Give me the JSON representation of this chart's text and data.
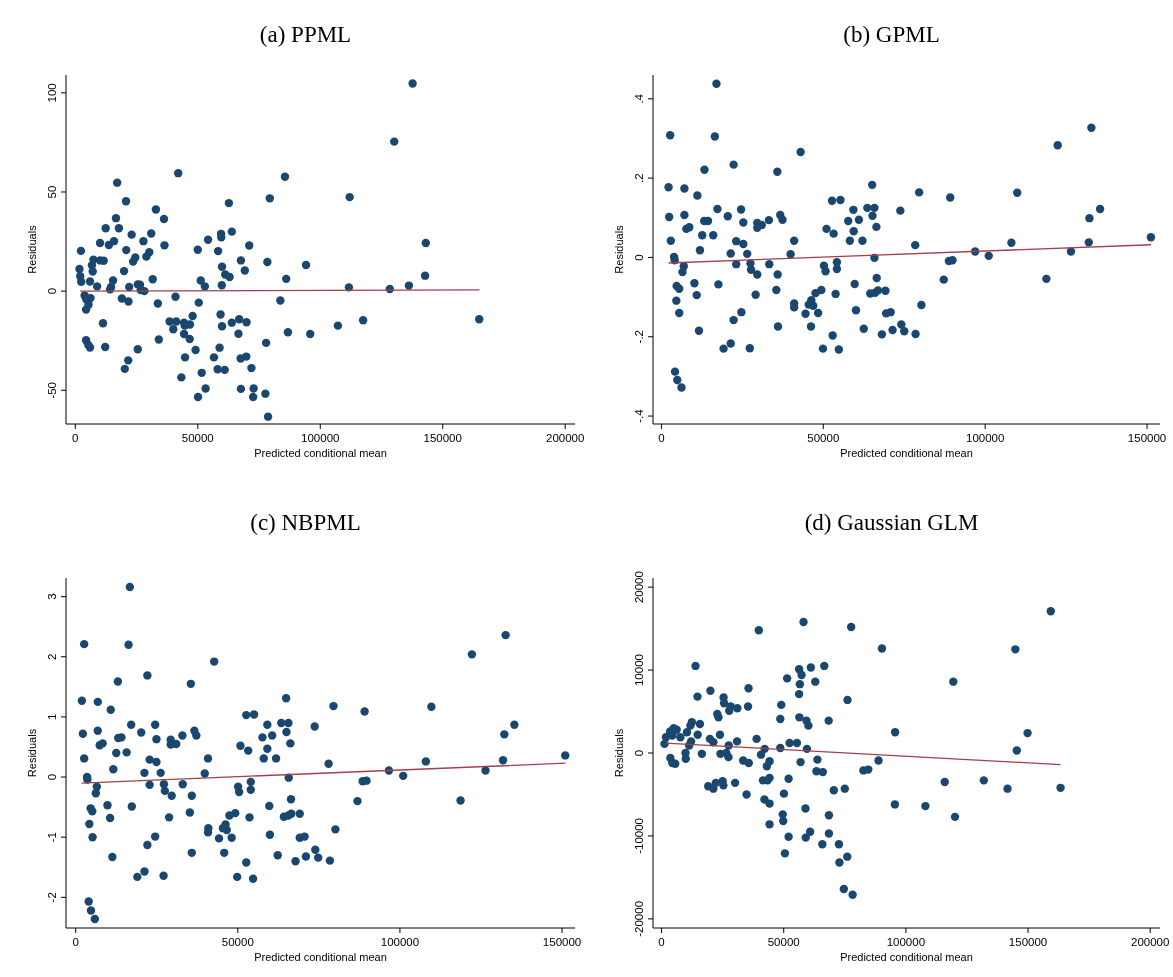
{
  "chart_data": [
    {
      "type": "scatter",
      "title": "(a) PPML",
      "xlabel": "Predicted conditional mean",
      "ylabel": "Residuals",
      "xlim": [
        -3800,
        204000
      ],
      "ylim": [
        -67,
        109
      ],
      "xticks": [
        0,
        50000,
        100000,
        150000,
        200000
      ],
      "yticks": [
        -50,
        0,
        50,
        100
      ],
      "marker": "circle",
      "series": [
        {
          "color": "#1a476f",
          "x": [
            137700,
            130200,
            42000,
            17100,
            85600,
            20700,
            112000,
            79400,
            62700,
            32900,
            36200,
            16600,
            12400,
            17800,
            63900,
            59500,
            59600,
            23000,
            31000,
            10100,
            13700,
            15800,
            27800,
            36400,
            54200,
            71000,
            143100,
            2300,
            20800,
            30200,
            50000,
            58300,
            7400,
            10100,
            11600,
            23600,
            24500,
            29000,
            67600,
            78400,
            94200,
            6800,
            59900,
            1700,
            7100,
            19900,
            69200,
            61200,
            63000,
            142800,
            2000,
            2400,
            6000,
            15400,
            31600,
            51200,
            86100,
            52900,
            59800,
            8900,
            14600,
            22000,
            25500,
            26400,
            26700,
            28200,
            14200,
            111700,
            128400,
            136200,
            3800,
            4500,
            6200,
            5400,
            4400,
            19000,
            21700,
            33700,
            40900,
            50400,
            83700,
            11300,
            38500,
            41200,
            40000,
            44400,
            44700,
            46800,
            47900,
            59300,
            59900,
            63900,
            66900,
            69900,
            66600,
            44400,
            46700,
            86800,
            95900,
            107200,
            117500,
            164900,
            4400,
            5300,
            6000,
            12200,
            25500,
            34100,
            49100,
            58900,
            77900,
            44800,
            56600,
            67500,
            69800,
            21600,
            20200,
            58100,
            61000,
            71900,
            51600,
            43300,
            53200,
            67600,
            72800,
            50100,
            72600,
            77600,
            78700
          ],
          "values": [
            104.7,
            75.4,
            59.5,
            54.7,
            57.7,
            45.3,
            47.4,
            46.8,
            44.4,
            41.2,
            36.4,
            36.8,
            31.7,
            31.7,
            30.0,
            28.9,
            27.2,
            28.5,
            29.1,
            24.3,
            23.3,
            25.2,
            25.2,
            23.1,
            25.9,
            23.0,
            24.3,
            20.3,
            20.7,
            19.6,
            20.9,
            20.2,
            15.9,
            15.5,
            15.3,
            14.9,
            17.0,
            17.4,
            15.5,
            14.7,
            13.2,
            13.1,
            12.3,
            11.2,
            9.9,
            10.1,
            10.4,
            8.4,
            7.1,
            7.8,
            7.5,
            4.7,
            4.9,
            5.4,
            6.0,
            5.4,
            6.2,
            2.4,
            3.0,
            2.4,
            2.1,
            2.1,
            3.4,
            3.2,
            0.6,
            0,
            0.9,
            1.9,
            1.1,
            2.8,
            -2.2,
            -4.1,
            -3.5,
            -6.9,
            -9.3,
            -3.7,
            -5.2,
            -6.2,
            -2.8,
            -5.8,
            -4.7,
            -16.2,
            -15.3,
            -15.3,
            -19.2,
            -15.9,
            -17.4,
            -16.8,
            -12.5,
            -11.8,
            -17.7,
            -15.9,
            -14.2,
            -15.7,
            -21.5,
            -21.6,
            -24.1,
            -20.7,
            -21.6,
            -17.4,
            -14.7,
            -14.2,
            -24.8,
            -27.1,
            -28.4,
            -28.2,
            -29.3,
            -24.4,
            -29.7,
            -28.5,
            -26.1,
            -33.4,
            -33.4,
            -34.0,
            -33.0,
            -34.9,
            -39.2,
            -39.4,
            -39.7,
            -38.8,
            -41.2,
            -43.5,
            -49.1,
            -49.3,
            -49.1,
            -53.4,
            -53.4,
            -51.7,
            -63.3
          ]
        },
        {
          "type": "line",
          "marker": "none",
          "color": "#a0404a",
          "x": [
            2000,
            165000
          ],
          "values": [
            0,
            0.6
          ]
        }
      ]
    },
    {
      "type": "scatter",
      "title": "(b) GPML",
      "xlabel": "Predicted conditional mean",
      "ylabel": "Residuals",
      "xlim": [
        -2600,
        154000
      ],
      "ylim": [
        -0.42,
        0.46
      ],
      "xticks": [
        0,
        50000,
        100000,
        150000
      ],
      "yticks": [
        {
          "value": -0.4,
          "label": "-.4"
        },
        {
          "value": -0.2,
          "label": "-.2"
        },
        0,
        {
          "value": 0.2,
          "label": ".2"
        },
        {
          "value": 0.4,
          "label": ".4"
        }
      ],
      "marker": "circle",
      "series": [
        {
          "color": "#1a476f",
          "x": [
            17000,
            2700,
            16500,
            132800,
            43000,
            122400,
            22300,
            13300,
            35800,
            2200,
            7100,
            65100,
            11100,
            79600,
            89200,
            109900,
            52700,
            55300,
            17300,
            24600,
            59300,
            63600,
            65800,
            73800,
            135500,
            2400,
            7100,
            20500,
            36700,
            65200,
            132200,
            13200,
            14400,
            25300,
            29600,
            33200,
            31000,
            37400,
            57700,
            61000,
            7700,
            8600,
            29600,
            51000,
            53200,
            59400,
            66400,
            12600,
            16000,
            2900,
            23100,
            25300,
            41000,
            58200,
            62100,
            78400,
            108100,
            132000,
            151200,
            11900,
            21400,
            26500,
            39900,
            96900,
            101100,
            126500,
            3900,
            4100,
            65800,
            88800,
            89900,
            6900,
            23100,
            27500,
            27700,
            33300,
            50200,
            50700,
            54200,
            54200,
            6500,
            29600,
            35900,
            66500,
            87200,
            118900,
            10200,
            17600,
            4700,
            5500,
            59700,
            35500,
            47600,
            49400,
            53800,
            64500,
            66000,
            66900,
            69200,
            10900,
            29100,
            4600,
            46300,
            41000,
            41000,
            45500,
            46900,
            80300,
            60100,
            5500,
            24700,
            44500,
            48400,
            69400,
            70800,
            22300,
            36000,
            46200,
            74100,
            11600,
            62500,
            71400,
            75000,
            52900,
            68100,
            78500,
            21400,
            19200,
            27300,
            49900,
            54800,
            4200,
            4900,
            6200
          ],
          "values": [
            0.438,
            0.308,
            0.305,
            0.327,
            0.266,
            0.283,
            0.234,
            0.221,
            0.216,
            0.177,
            0.174,
            0.183,
            0.156,
            0.164,
            0.151,
            0.163,
            0.143,
            0.145,
            0.122,
            0.121,
            0.12,
            0.125,
            0.125,
            0.118,
            0.122,
            0.102,
            0.107,
            0.104,
            0.107,
            0.105,
            0.099,
            0.092,
            0.092,
            0.088,
            0.087,
            0.094,
            0.082,
            0.095,
            0.092,
            0.095,
            0.072,
            0.076,
            0.075,
            0.072,
            0.06,
            0.066,
            0.077,
            0.056,
            0.056,
            0.042,
            0.041,
            0.034,
            0.042,
            0.042,
            0.042,
            0.031,
            0.037,
            0.038,
            0.051,
            0.018,
            0.01,
            0.009,
            0.008,
            0.015,
            0.004,
            0.015,
            0.001,
            -0.007,
            -0.001,
            -0.009,
            -0.007,
            -0.022,
            -0.017,
            -0.015,
            -0.031,
            -0.017,
            -0.021,
            -0.035,
            -0.012,
            -0.029,
            -0.037,
            -0.043,
            -0.043,
            -0.052,
            -0.056,
            -0.054,
            -0.065,
            -0.068,
            -0.072,
            -0.079,
            -0.067,
            -0.082,
            -0.09,
            -0.082,
            -0.092,
            -0.091,
            -0.089,
            -0.083,
            -0.084,
            -0.095,
            -0.094,
            -0.109,
            -0.108,
            -0.116,
            -0.126,
            -0.119,
            -0.122,
            -0.12,
            -0.133,
            -0.14,
            -0.138,
            -0.142,
            -0.14,
            -0.141,
            -0.138,
            -0.158,
            -0.174,
            -0.174,
            -0.169,
            -0.185,
            -0.18,
            -0.183,
            -0.186,
            -0.197,
            -0.194,
            -0.193,
            -0.217,
            -0.23,
            -0.229,
            -0.23,
            -0.232,
            -0.288,
            -0.309,
            -0.328
          ]
        },
        {
          "type": "line",
          "marker": "none",
          "color": "#a0404a",
          "x": [
            2200,
            151200
          ],
          "values": [
            -0.014,
            0.032
          ]
        }
      ]
    },
    {
      "type": "scatter",
      "title": "(c) NBPML",
      "xlabel": "Predicted conditional mean",
      "ylabel": "Residuals",
      "xlim": [
        -3000,
        154000
      ],
      "ylim": [
        -2.51,
        3.31
      ],
      "xticks": [
        0,
        50000,
        100000,
        150000
      ],
      "yticks": [
        -2,
        -1,
        0,
        1,
        2,
        3
      ],
      "marker": "circle",
      "series": [
        {
          "color": "#1a476f",
          "x": [
            16700,
            2600,
            16300,
            132600,
            42700,
            122200,
            22100,
            13000,
            35500,
            1900,
            6800,
            64900,
            10800,
            79500,
            89100,
            109700,
            52600,
            55000,
            17100,
            24500,
            59100,
            63400,
            65600,
            73700,
            135300,
            2200,
            6800,
            20200,
            36600,
            65000,
            132200,
            13100,
            14100,
            24900,
            29300,
            32900,
            31000,
            37200,
            57600,
            60600,
            7400,
            8300,
            29300,
            50800,
            53200,
            59100,
            66200,
            12500,
            15700,
            2600,
            22800,
            24900,
            40800,
            58000,
            61800,
            78000,
            108000,
            131800,
            151000,
            11600,
            21200,
            26200,
            39800,
            96600,
            101000,
            126400,
            3500,
            3600,
            65700,
            88500,
            89700,
            6500,
            22800,
            27200,
            27500,
            33000,
            50100,
            50400,
            54000,
            54000,
            6200,
            29600,
            35800,
            66400,
            86900,
            118700,
            9800,
            17300,
            4600,
            5100,
            59700,
            35200,
            47400,
            49200,
            53600,
            64200,
            65600,
            66500,
            69100,
            10600,
            28800,
            4200,
            45400,
            40900,
            40800,
            46200,
            46600,
            80100,
            59900,
            5200,
            24500,
            44200,
            48100,
            69100,
            70600,
            22100,
            35800,
            45800,
            11300,
            62300,
            71000,
            73900,
            74800,
            52600,
            67800,
            78400,
            21200,
            19000,
            27100,
            49800,
            54700,
            4000,
            4700,
            5900
          ],
          "values": [
            3.16,
            2.21,
            2.2,
            2.36,
            1.92,
            2.04,
            1.69,
            1.59,
            1.55,
            1.27,
            1.25,
            1.31,
            1.12,
            1.18,
            1.09,
            1.17,
            1.03,
            1.04,
            0.87,
            0.87,
            0.87,
            0.9,
            0.9,
            0.84,
            0.87,
            0.72,
            0.77,
            0.74,
            0.77,
            0.75,
            0.71,
            0.65,
            0.66,
            0.63,
            0.62,
            0.69,
            0.55,
            0.69,
            0.66,
            0.69,
            0.53,
            0.56,
            0.54,
            0.52,
            0.44,
            0.47,
            0.56,
            0.4,
            0.41,
            0.31,
            0.29,
            0.25,
            0.31,
            0.31,
            0.31,
            0.22,
            0.26,
            0.28,
            0.36,
            0.13,
            0.07,
            0.07,
            0.06,
            0.11,
            0.02,
            0.11,
            0,
            -0.04,
            -0.01,
            -0.07,
            -0.06,
            -0.16,
            -0.13,
            -0.12,
            -0.23,
            -0.12,
            -0.16,
            -0.25,
            -0.08,
            -0.21,
            -0.27,
            -0.31,
            -0.31,
            -0.37,
            -0.4,
            -0.39,
            -0.47,
            -0.49,
            -0.52,
            -0.57,
            -0.48,
            -0.59,
            -0.64,
            -0.6,
            -0.67,
            -0.66,
            -0.64,
            -0.61,
            -0.61,
            -0.68,
            -0.67,
            -0.78,
            -0.85,
            -0.85,
            -0.92,
            -0.79,
            -0.88,
            -0.87,
            -0.96,
            -1.0,
            -0.99,
            -1.02,
            -1.01,
            -1.01,
            -0.99,
            -1.13,
            -1.26,
            -1.26,
            -1.33,
            -1.3,
            -1.32,
            -1.21,
            -1.34,
            -1.42,
            -1.4,
            -1.39,
            -1.57,
            -1.66,
            -1.64,
            -1.66,
            -1.69,
            -2.07,
            -2.22,
            -2.36
          ]
        },
        {
          "type": "line",
          "marker": "none",
          "color": "#a0404a",
          "x": [
            1800,
            151100
          ],
          "values": [
            -0.1,
            0.23
          ]
        }
      ]
    },
    {
      "type": "scatter",
      "title": "(d) Gaussian GLM",
      "xlabel": "Predicted conditional mean",
      "ylabel": "Residuals",
      "xlim": [
        -3500,
        204000
      ],
      "ylim": [
        -21100,
        21100
      ],
      "xticks": [
        0,
        50000,
        100000,
        150000,
        200000
      ],
      "yticks": [
        -20000,
        -10000,
        0,
        10000,
        20000
      ],
      "marker": "circle",
      "series": [
        {
          "color": "#1a476f",
          "x": [
            159300,
            58100,
            77600,
            39800,
            90200,
            144800,
            13900,
            66600,
            56300,
            61100,
            57300,
            51400,
            62900,
            56600,
            119400,
            20000,
            35600,
            14700,
            25400,
            56300,
            76100,
            25600,
            28300,
            27700,
            31000,
            35400,
            49000,
            22800,
            23300,
            48600,
            56400,
            59300,
            68400,
            60100,
            12400,
            11800,
            15700,
            5000,
            6200,
            3500,
            4400,
            10400,
            14800,
            23900,
            95600,
            149800,
            1800,
            7700,
            12100,
            11300,
            19800,
            21200,
            30900,
            38900,
            52400,
            55400,
            27500,
            1200,
            48600,
            42200,
            59500,
            145400,
            9800,
            16500,
            24100,
            26500,
            40700,
            9900,
            27400,
            3600,
            4400,
            5600,
            33400,
            35700,
            44200,
            43100,
            56900,
            63800,
            88800,
            63400,
            66000,
            82600,
            84600,
            41500,
            43400,
            44200,
            52000,
            19100,
            21200,
            22200,
            25000,
            25300,
            30100,
            34800,
            50100,
            70500,
            75000,
            115900,
            131900,
            141600,
            163300,
            42100,
            44200,
            58900,
            95500,
            108000,
            49600,
            49800,
            68500,
            120100,
            44200,
            60800,
            68500,
            52000,
            59000,
            65800,
            72600,
            50500,
            76000,
            72800,
            74600,
            78200
          ],
          "values": [
            17100,
            15800,
            15200,
            14800,
            12600,
            12500,
            10500,
            10500,
            10100,
            10300,
            9400,
            9000,
            8600,
            8300,
            8600,
            7500,
            7800,
            6800,
            6700,
            7100,
            6400,
            6000,
            5600,
            5100,
            5400,
            5600,
            5800,
            4700,
            4300,
            4100,
            4300,
            3900,
            3900,
            3300,
            3700,
            3300,
            3500,
            3000,
            2800,
            2600,
            2100,
            2500,
            2200,
            2200,
            2500,
            2400,
            1900,
            1900,
            1400,
            900,
            1700,
            1300,
            1400,
            1700,
            1200,
            1200,
            900,
            1100,
            600,
            500,
            500,
            300,
            0,
            -100,
            -100,
            0,
            -200,
            -700,
            -500,
            -600,
            -1200,
            -1300,
            -900,
            -1200,
            -1000,
            -1600,
            -1100,
            -800,
            -900,
            -2200,
            -2300,
            -2100,
            -2000,
            -3300,
            -3300,
            -3000,
            -3100,
            -4000,
            -4300,
            -3600,
            -3400,
            -3900,
            -3600,
            -5000,
            -4900,
            -4500,
            -4300,
            -3500,
            -3300,
            -4300,
            -4200,
            -5600,
            -6100,
            -6700,
            -6200,
            -6400,
            -7400,
            -8200,
            -7500,
            -7700,
            -8600,
            -9500,
            -9700,
            -10100,
            -10200,
            -11000,
            -11000,
            -12100,
            -12500,
            -13200,
            -16400,
            -17100
          ]
        },
        {
          "type": "line",
          "marker": "none",
          "color": "#a0404a",
          "x": [
            1500,
            163300
          ],
          "values": [
            1200,
            -1400
          ]
        }
      ]
    }
  ]
}
